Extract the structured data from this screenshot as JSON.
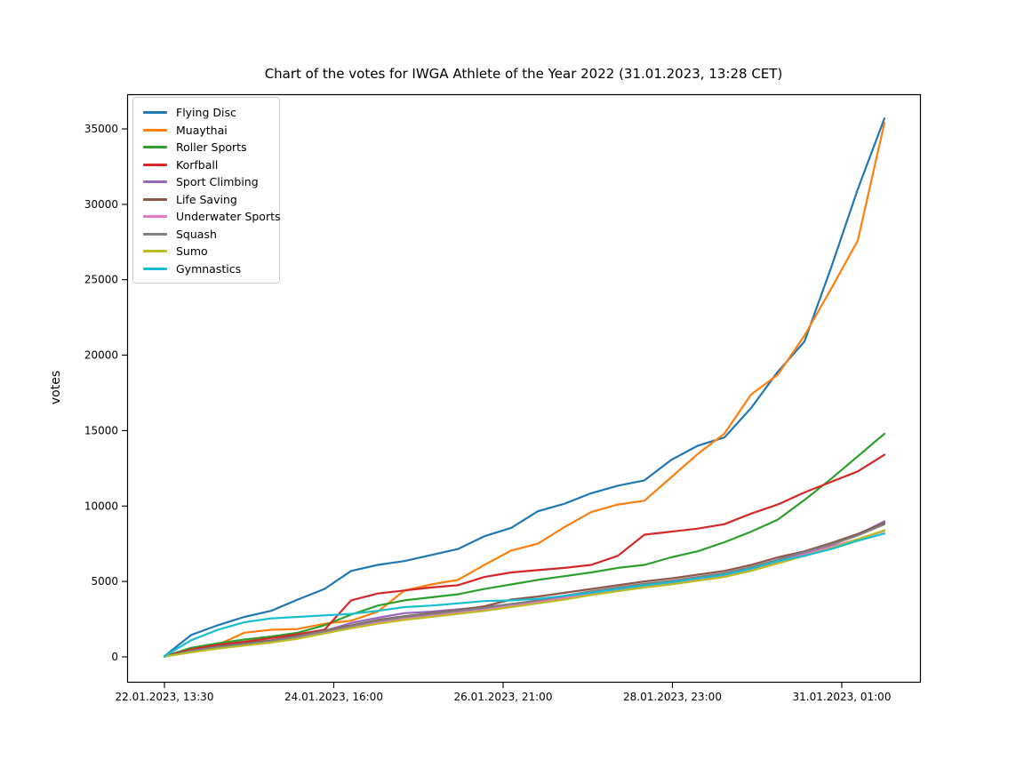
{
  "chart_data": {
    "type": "line",
    "title": "Chart of the votes for IWGA Athlete of the Year 2022 (31.01.2023, 13:28 CET)",
    "xlabel": "",
    "ylabel": "votes",
    "grid": false,
    "legend_position": "upper left",
    "y_ticks": [
      0,
      5000,
      10000,
      15000,
      20000,
      25000,
      30000,
      35000
    ],
    "y_tick_labels": [
      "0",
      "5000",
      "10000",
      "15000",
      "20000",
      "25000",
      "30000",
      "35000"
    ],
    "ylim": [
      -1700,
      37400
    ],
    "x_tick_labels": [
      "22.01.2023, 13:30",
      "24.01.2023, 16:00",
      "26.01.2023, 21:00",
      "28.01.2023, 23:00",
      "31.01.2023, 01:00"
    ],
    "x_range": [
      "22.01.2023, 13:30",
      "31.01.2023, ~13:28"
    ],
    "series": [
      {
        "name": "Flying Disc",
        "color": "#1f77b4",
        "values": [
          50,
          1450,
          2100,
          2650,
          3050,
          3800,
          4500,
          5700,
          6100,
          6350,
          6750,
          7150,
          8000,
          8550,
          9650,
          10150,
          10850,
          11350,
          11700,
          13050,
          14000,
          14550,
          16500,
          18900,
          20900,
          25800,
          31000,
          35700
        ]
      },
      {
        "name": "Muaythai",
        "color": "#ff7f0e",
        "values": [
          30,
          500,
          800,
          1600,
          1800,
          1850,
          2200,
          2400,
          3000,
          4400,
          4800,
          5100,
          6100,
          7050,
          7500,
          8600,
          9600,
          10100,
          10350,
          11900,
          13450,
          14800,
          17400,
          18700,
          21300,
          24400,
          27600,
          35400
        ]
      },
      {
        "name": "Roller Sports",
        "color": "#2ca02c",
        "values": [
          40,
          600,
          900,
          1150,
          1350,
          1600,
          2100,
          2800,
          3400,
          3750,
          3950,
          4150,
          4500,
          4800,
          5100,
          5350,
          5600,
          5900,
          6100,
          6600,
          7000,
          7600,
          8300,
          9100,
          10400,
          11800,
          13300,
          14790
        ]
      },
      {
        "name": "Korfball",
        "color": "#d62728",
        "values": [
          30,
          500,
          800,
          1000,
          1250,
          1500,
          1800,
          3750,
          4200,
          4400,
          4600,
          4750,
          5300,
          5600,
          5750,
          5900,
          6100,
          6700,
          8100,
          8300,
          8500,
          8800,
          9500,
          10100,
          10900,
          11600,
          12300,
          13400
        ]
      },
      {
        "name": "Sport Climbing",
        "color": "#9467bd",
        "values": [
          20,
          350,
          600,
          800,
          1000,
          1300,
          1700,
          2250,
          2600,
          2900,
          3000,
          3150,
          3300,
          3500,
          3700,
          4000,
          4250,
          4500,
          4700,
          5000,
          5200,
          5500,
          5900,
          6400,
          6900,
          7400,
          8100,
          8990
        ]
      },
      {
        "name": "Life Saving",
        "color": "#8c564b",
        "values": [
          20,
          400,
          700,
          900,
          1100,
          1400,
          1750,
          2100,
          2450,
          2700,
          2900,
          3100,
          3350,
          3800,
          4000,
          4250,
          4500,
          4750,
          5000,
          5200,
          5450,
          5700,
          6100,
          6600,
          7000,
          7550,
          8150,
          8870
        ]
      },
      {
        "name": "Underwater Sports",
        "color": "#e377c2",
        "values": [
          20,
          350,
          600,
          800,
          1000,
          1250,
          1600,
          1950,
          2300,
          2550,
          2750,
          2950,
          3150,
          3400,
          3650,
          3900,
          4200,
          4450,
          4700,
          4900,
          5150,
          5400,
          5800,
          6300,
          6800,
          7300,
          7800,
          8350
        ]
      },
      {
        "name": "Squash",
        "color": "#7f7f7f",
        "values": [
          20,
          400,
          650,
          850,
          1050,
          1350,
          1700,
          2050,
          2400,
          2650,
          2850,
          3050,
          3250,
          3500,
          3750,
          4050,
          4350,
          4600,
          4850,
          5050,
          5300,
          5550,
          5950,
          6450,
          6950,
          7450,
          8050,
          8790
        ]
      },
      {
        "name": "Sumo",
        "color": "#bcbd22",
        "values": [
          20,
          300,
          550,
          750,
          950,
          1200,
          1550,
          1900,
          2200,
          2450,
          2650,
          2850,
          3050,
          3300,
          3550,
          3800,
          4100,
          4350,
          4600,
          4800,
          5050,
          5300,
          5700,
          6200,
          6700,
          7200,
          7800,
          8390
        ]
      },
      {
        "name": "Gymnastics",
        "color": "#17becf",
        "values": [
          50,
          1100,
          1800,
          2300,
          2550,
          2650,
          2750,
          2850,
          3050,
          3300,
          3400,
          3550,
          3700,
          3750,
          3850,
          4050,
          4250,
          4500,
          4750,
          4950,
          5200,
          5450,
          5850,
          6350,
          6700,
          7150,
          7700,
          8180
        ]
      }
    ]
  }
}
